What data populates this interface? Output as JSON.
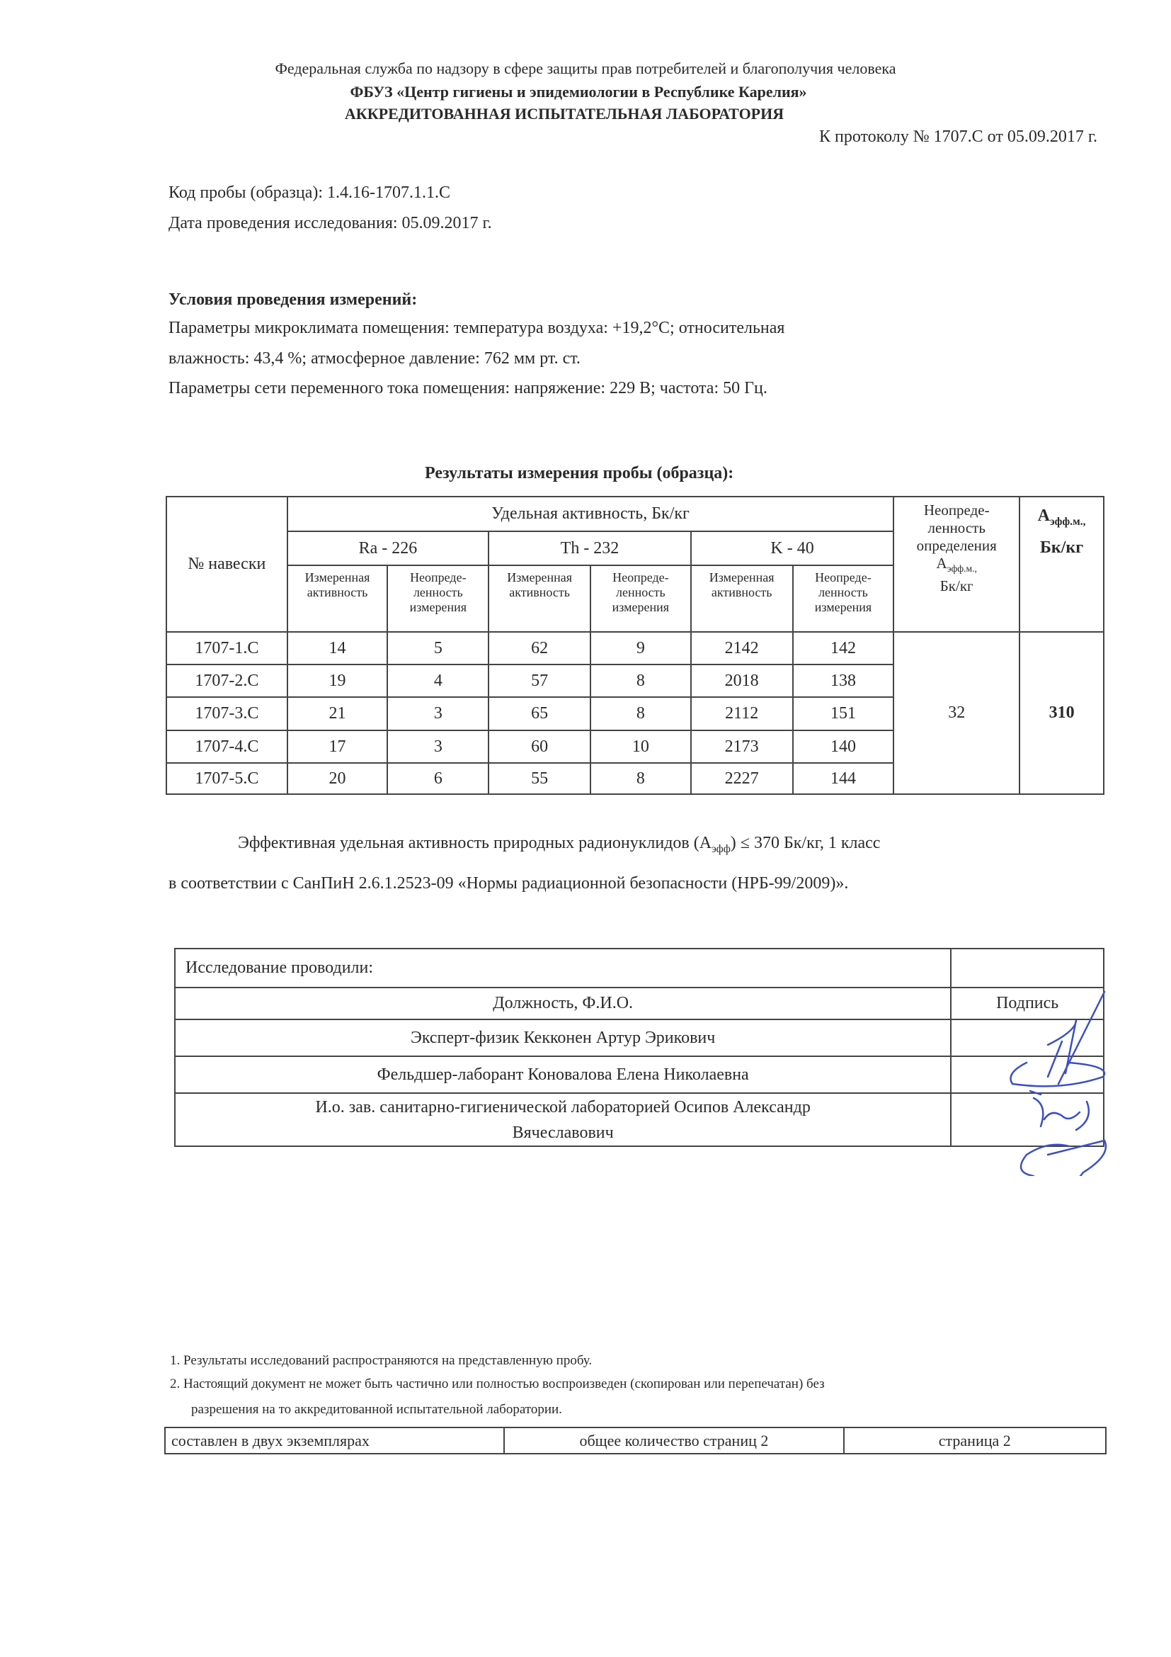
{
  "header": {
    "line1": "Федеральная служба по надзору в сфере защиты прав потребителей и благополучия человека",
    "line2": "ФБУЗ «Центр гигиены и эпидемиологии в Республике Карелия»",
    "line3": "АККРЕДИТОВАННАЯ ИСПЫТАТЕЛЬНАЯ ЛАБОРАТОРИЯ",
    "protocol": "К протоколу № 1707.С от 05.09.2017 г."
  },
  "sample": {
    "code": "Код пробы (образца): 1.4.16-1707.1.1.С",
    "date": "Дата проведения исследования: 05.09.2017 г."
  },
  "conditions": {
    "title": "Условия проведения измерений:",
    "line1": "Параметры микроклимата помещения: температура воздуха: +19,2°С; относительная",
    "line2": "влажность: 43,4 %; атмосферное давление: 762 мм рт. ст.",
    "line3": "Параметры сети переменного тока помещения: напряжение: 229 В; частота: 50 Гц."
  },
  "results": {
    "title": "Результаты измерения пробы (образца):",
    "col_sample": "№ навески",
    "col_group": "Удельная активность, Бк/кг",
    "nuclides": [
      "Ra - 226",
      "Th - 232",
      "K - 40"
    ],
    "sub_measured": "Измеренная активность",
    "sub_uncertainty": "Неопреде-ленность измерения",
    "col_uncert_main": "Неопреде-ленность определения",
    "col_uncert_sym": "А",
    "col_uncert_sub": "эфф.м.,",
    "col_uncert_unit": "Бк/кг",
    "col_aeff_sym": "А",
    "col_aeff_sub": "эфф.м.,",
    "col_aeff_unit": "Бк/кг",
    "rows": [
      {
        "id": "1707-1.С",
        "ra": "14",
        "ra_u": "5",
        "th": "62",
        "th_u": "9",
        "k": "2142",
        "k_u": "142"
      },
      {
        "id": "1707-2.С",
        "ra": "19",
        "ra_u": "4",
        "th": "57",
        "th_u": "8",
        "k": "2018",
        "k_u": "138"
      },
      {
        "id": "1707-3.С",
        "ra": "21",
        "ra_u": "3",
        "th": "65",
        "th_u": "8",
        "k": "2112",
        "k_u": "151"
      },
      {
        "id": "1707-4.С",
        "ra": "17",
        "ra_u": "3",
        "th": "60",
        "th_u": "10",
        "k": "2173",
        "k_u": "140"
      },
      {
        "id": "1707-5.С",
        "ra": "20",
        "ra_u": "6",
        "th": "55",
        "th_u": "8",
        "k": "2227",
        "k_u": "144"
      }
    ],
    "uncertainty_value": "32",
    "aeff_value": "310"
  },
  "conclusion": {
    "line1_a": "Эффективная удельная активность природных радионуклидов (А",
    "line1_sub": "эфф",
    "line1_b": ") ≤ 370 Бк/кг, 1 класс",
    "line2": "в соответствии  с СанПиН 2.6.1.2523-09 «Нормы радиационной безопасности (НРБ-99/2009)»."
  },
  "signatures": {
    "title": "Исследование проводили:",
    "col_position": "Должность, Ф.И.О.",
    "col_signature": "Подпись",
    "people": [
      "Эксперт-физик Кекконен Артур Эрикович",
      "Фельдшер-лаборант Коновалова Елена Николаевна",
      "И.о. зав. санитарно-гигиенической лабораторией Осипов Александр Вячеславович"
    ],
    "ink_color": "#3b4fc4"
  },
  "notes": [
    "1.  Результаты исследований распространяются на представленную пробу.",
    "2. Настоящий документ не может быть частично или полностью воспроизведен (скопирован или перепечатан) без",
    "разрешения   на то аккредитованной испытательной лаборатории."
  ],
  "footer": {
    "copies": "составлен в двух экземплярах",
    "total_pages": "общее количество страниц 2",
    "page": "страница 2"
  }
}
